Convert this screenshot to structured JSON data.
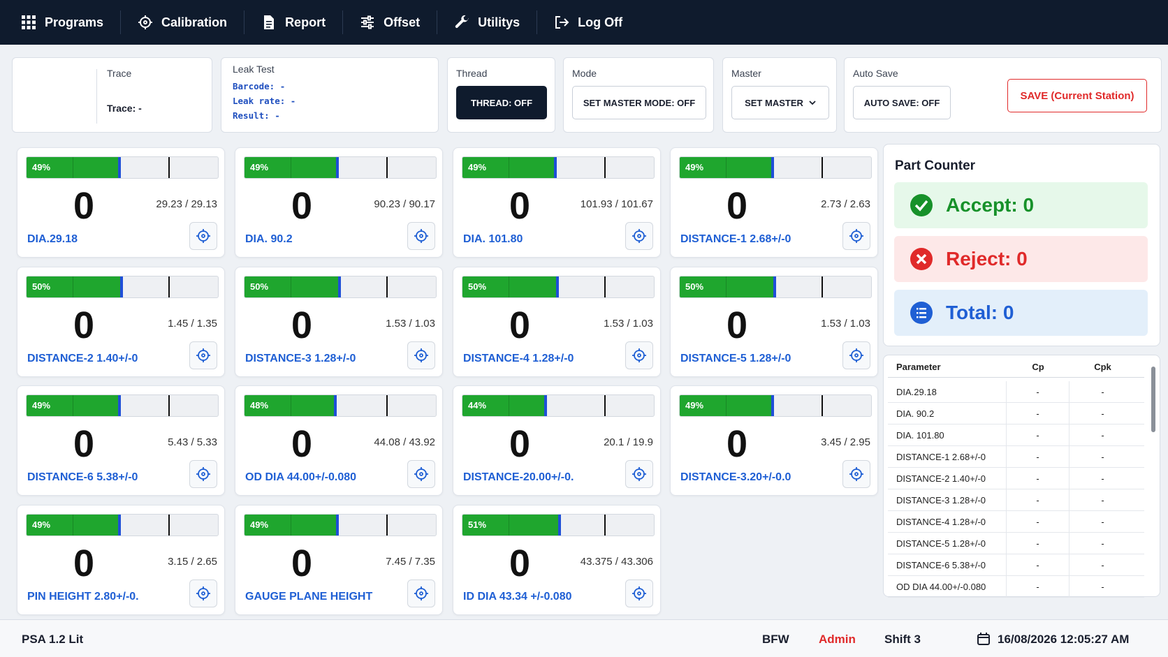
{
  "nav": {
    "programs": "Programs",
    "calibration": "Calibration",
    "report": "Report",
    "offset": "Offset",
    "utilitys": "Utilitys",
    "logoff": "Log Off"
  },
  "trace": {
    "label": "Trace",
    "value": "Trace: -"
  },
  "leak": {
    "label": "Leak Test",
    "barcode": "Barcode: -",
    "rate": "Leak rate: -",
    "result": "Result: -"
  },
  "thread": {
    "label": "Thread",
    "button": "THREAD: OFF"
  },
  "mode": {
    "label": "Mode",
    "button": "SET MASTER MODE: OFF"
  },
  "master": {
    "label": "Master",
    "button": "SET MASTER"
  },
  "autosave": {
    "label": "Auto Save",
    "button": "AUTO SAVE: OFF"
  },
  "save_button": "SAVE (Current Station)",
  "gauges": [
    {
      "pct": "49%",
      "fill": 0.49,
      "value": "0",
      "range": "29.23 / 29.13",
      "name": "DIA.29.18"
    },
    {
      "pct": "49%",
      "fill": 0.49,
      "value": "0",
      "range": "90.23 / 90.17",
      "name": "DIA. 90.2"
    },
    {
      "pct": "49%",
      "fill": 0.49,
      "value": "0",
      "range": "101.93 / 101.67",
      "name": "DIA. 101.80"
    },
    {
      "pct": "49%",
      "fill": 0.49,
      "value": "0",
      "range": "2.73 / 2.63",
      "name": "DISTANCE-1 2.68+/-0"
    },
    {
      "pct": "50%",
      "fill": 0.5,
      "value": "0",
      "range": "1.45 / 1.35",
      "name": "DISTANCE-2 1.40+/-0"
    },
    {
      "pct": "50%",
      "fill": 0.5,
      "value": "0",
      "range": "1.53 / 1.03",
      "name": "DISTANCE-3 1.28+/-0"
    },
    {
      "pct": "50%",
      "fill": 0.5,
      "value": "0",
      "range": "1.53 / 1.03",
      "name": "DISTANCE-4 1.28+/-0"
    },
    {
      "pct": "50%",
      "fill": 0.5,
      "value": "0",
      "range": "1.53 / 1.03",
      "name": "DISTANCE-5 1.28+/-0"
    },
    {
      "pct": "49%",
      "fill": 0.49,
      "value": "0",
      "range": "5.43 / 5.33",
      "name": "DISTANCE-6 5.38+/-0"
    },
    {
      "pct": "48%",
      "fill": 0.48,
      "value": "0",
      "range": "44.08 / 43.92",
      "name": "OD DIA 44.00+/-0.080"
    },
    {
      "pct": "44%",
      "fill": 0.44,
      "value": "0",
      "range": "20.1 / 19.9",
      "name": "DISTANCE-20.00+/-0."
    },
    {
      "pct": "49%",
      "fill": 0.49,
      "value": "0",
      "range": "3.45 / 2.95",
      "name": "DISTANCE-3.20+/-0.0"
    },
    {
      "pct": "49%",
      "fill": 0.49,
      "value": "0",
      "range": "3.15 / 2.65",
      "name": "PIN HEIGHT 2.80+/-0."
    },
    {
      "pct": "49%",
      "fill": 0.49,
      "value": "0",
      "range": "7.45 / 7.35",
      "name": "GAUGE PLANE HEIGHT"
    },
    {
      "pct": "51%",
      "fill": 0.51,
      "value": "0",
      "range": "43.375 / 43.306",
      "name": "ID DIA 43.34 +/-0.080"
    }
  ],
  "counter": {
    "title": "Part Counter",
    "accept": "Accept: 0",
    "reject": "Reject: 0",
    "total": "Total: 0"
  },
  "table": {
    "headers": [
      "Parameter",
      "Cp",
      "Cpk"
    ],
    "rows": [
      [
        "DIA.29.18",
        "-",
        "-"
      ],
      [
        "DIA. 90.2",
        "-",
        "-"
      ],
      [
        "DIA. 101.80",
        "-",
        "-"
      ],
      [
        "DISTANCE-1 2.68+/-0",
        "-",
        "-"
      ],
      [
        "DISTANCE-2 1.40+/-0",
        "-",
        "-"
      ],
      [
        "DISTANCE-3 1.28+/-0",
        "-",
        "-"
      ],
      [
        "DISTANCE-4 1.28+/-0",
        "-",
        "-"
      ],
      [
        "DISTANCE-5 1.28+/-0",
        "-",
        "-"
      ],
      [
        "DISTANCE-6 5.38+/-0",
        "-",
        "-"
      ],
      [
        "OD DIA 44.00+/-0.080",
        "-",
        "-"
      ]
    ]
  },
  "footer": {
    "app": "PSA 1.2 Lit",
    "plant": "BFW",
    "user": "Admin",
    "shift": "Shift 3",
    "datetime": "16/08/2026 12:05:27 AM"
  },
  "colors": {
    "nav_bg": "#0f1b2d",
    "accent_blue": "#1f5fd4",
    "bar_green": "#1fa62e",
    "accept_bg": "#e6f8ea",
    "reject_bg": "#fde8e8",
    "total_bg": "#e3effa",
    "danger": "#e02a2a"
  }
}
